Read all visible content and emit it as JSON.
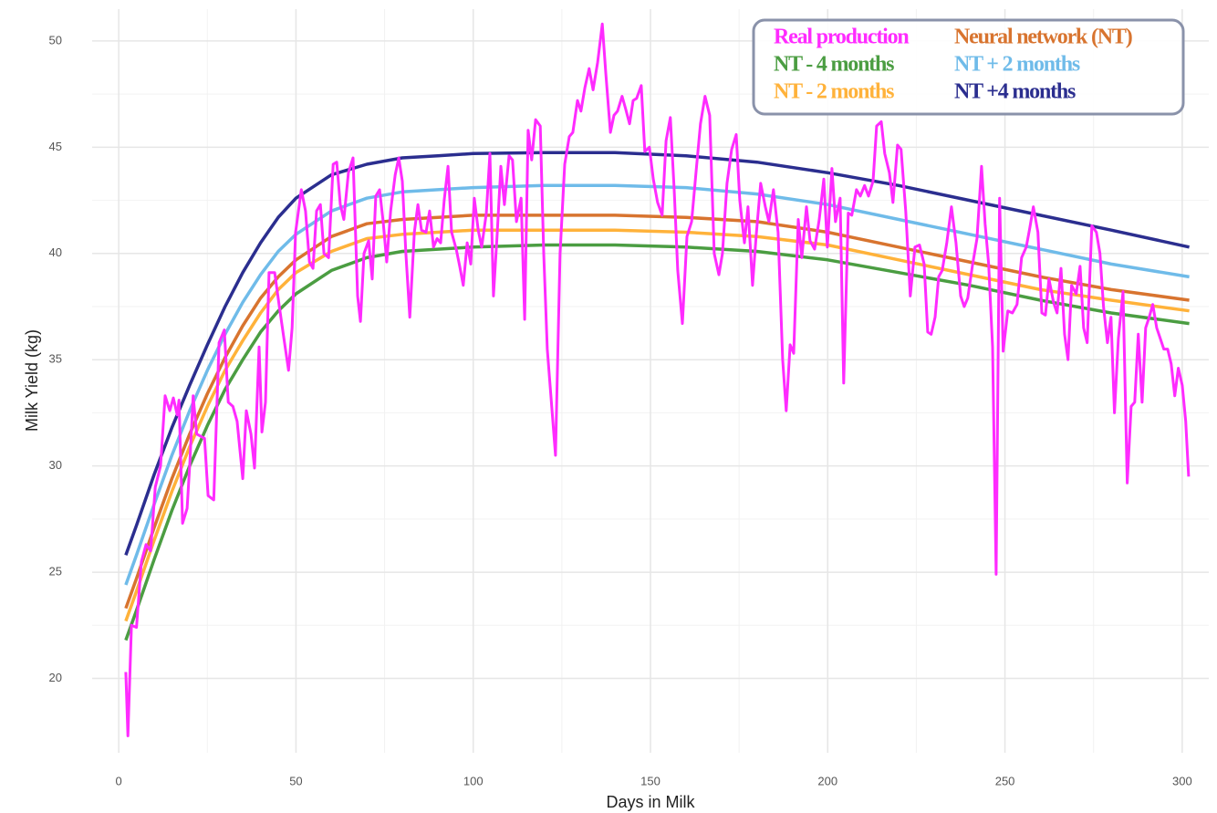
{
  "chart_data": {
    "type": "line",
    "x_label": "Days in Milk",
    "y_label": "Milk Yield (kg)",
    "xlim": [
      -7.5,
      307.5
    ],
    "ylim": [
      16.5,
      51.5
    ],
    "xticks": [
      0,
      50,
      100,
      150,
      200,
      250,
      300
    ],
    "yticks": [
      20,
      25,
      30,
      35,
      40,
      45,
      50
    ],
    "grid": true,
    "legend": "top-right",
    "series": [
      {
        "name": "Real production",
        "color": "#ff2bff",
        "x": [
          2,
          2.6,
          3.6,
          5,
          6.4,
          7.7,
          9,
          10.3,
          11.8,
          13.1,
          14.4,
          15.4,
          16.5,
          17,
          18,
          19.3,
          20,
          21,
          22,
          24.2,
          25.2,
          26.8,
          28.3,
          29.8,
          30.9,
          32.2,
          33.4,
          35,
          36,
          37.3,
          38.3,
          39.6,
          40.4,
          41.4,
          42.4,
          44,
          45.3,
          46.6,
          47.9,
          48.9,
          49.9,
          51.5,
          52.7,
          53.8,
          54.8,
          55.8,
          56.9,
          57.9,
          59.2,
          60.5,
          61.5,
          62.5,
          63.5,
          64.8,
          66.1,
          67.4,
          68.2,
          69.2,
          70.5,
          71.5,
          72.5,
          73.6,
          74.6,
          75.6,
          76.7,
          78,
          79,
          80,
          81,
          82.1,
          83.4,
          84.4,
          85.4,
          86.7,
          87.7,
          88.8,
          89.8,
          90.8,
          91.8,
          92.9,
          93.9,
          95.2,
          96.2,
          97.2,
          98.3,
          99.3,
          100.3,
          101.4,
          102.4,
          103.7,
          104.7,
          105.7,
          106.8,
          107.8,
          108.8,
          110.1,
          111.1,
          112.2,
          113.5,
          114.5,
          115.5,
          116.5,
          117.6,
          118.9,
          119.9,
          120.9,
          123.2,
          124.5,
          125.8,
          127.1,
          128.1,
          129.4,
          130.4,
          131.5,
          132.7,
          133.8,
          135.1,
          136.4,
          137.4,
          138.7,
          139.7,
          140.7,
          142,
          143,
          144.1,
          145.1,
          146.1,
          147.4,
          148.4,
          149.7,
          150.8,
          152,
          153.3,
          154.4,
          155.6,
          156.7,
          157.7,
          159,
          160.3,
          161.6,
          162.9,
          164.1,
          165.4,
          166.7,
          168,
          169.3,
          170.3,
          171.6,
          172.9,
          174.2,
          175.2,
          176.5,
          177.5,
          178.8,
          179.8,
          181.1,
          182.4,
          183.4,
          184.7,
          186,
          187.3,
          188.3,
          189.4,
          190.4,
          191.7,
          192.7,
          194,
          195,
          196.3,
          197.6,
          198.9,
          199.9,
          201.2,
          202.2,
          203.5,
          204.5,
          205.8,
          206.8,
          208.1,
          209.2,
          210.4,
          211.5,
          212.8,
          213.8,
          215.1,
          216.1,
          217.4,
          218.4,
          219.7,
          220.7,
          222,
          223.3,
          224.6,
          225.9,
          227.2,
          228.2,
          229.2,
          230.3,
          231.3,
          232.3,
          233.6,
          234.9,
          236.2,
          237.5,
          238.5,
          239.5,
          240.8,
          242.1,
          243.4,
          244.4,
          245.4,
          246.5,
          247.5,
          248.5,
          249.5,
          250.8,
          252.1,
          253.4,
          254.7,
          256,
          257,
          258,
          259.3,
          260.4,
          261.4,
          262.4,
          263.7,
          264.7,
          265.8,
          266.8,
          267.8,
          268.8,
          270.1,
          271.2,
          272.2,
          273.2,
          274.5,
          275.8,
          276.8,
          277.8,
          278.9,
          279.9,
          280.9,
          282,
          283.3,
          284.5,
          285.6,
          286.6,
          287.6,
          288.7,
          289.7,
          290.7,
          291.7,
          292.8,
          293.8,
          294.8,
          295.9,
          296.9,
          297.9,
          298.9,
          300,
          301,
          301.8
        ],
        "values": [
          20.3,
          17.3,
          22.5,
          22.4,
          25.5,
          26.3,
          26,
          29,
          30,
          33.3,
          32.6,
          33.2,
          32.4,
          33.1,
          27.3,
          28,
          30,
          33.3,
          31.5,
          31.3,
          28.6,
          28.4,
          35.8,
          36.4,
          33,
          32.8,
          32.1,
          29.4,
          32.6,
          31.5,
          29.9,
          35.6,
          31.6,
          33,
          39.1,
          39.1,
          37.5,
          36,
          34.5,
          36.5,
          41,
          43,
          42,
          39.6,
          39.3,
          42,
          42.3,
          40,
          39.8,
          44.2,
          44.3,
          42.3,
          41.6,
          43.8,
          44.5,
          38,
          36.8,
          40,
          40.6,
          38.8,
          42.7,
          43,
          41.5,
          39.6,
          42,
          43.7,
          44.5,
          43.4,
          40,
          37,
          41,
          42.3,
          41.1,
          41,
          42,
          40.3,
          40.7,
          40.5,
          42.5,
          44.1,
          41,
          40.2,
          39.4,
          38.5,
          40.5,
          39.5,
          42.6,
          41.1,
          40.3,
          41.9,
          44.7,
          38,
          41,
          44.1,
          42.3,
          44.6,
          44.4,
          41.5,
          42.6,
          36.9,
          45.8,
          44.4,
          46.3,
          46,
          40,
          35.5,
          30.5,
          40,
          44.2,
          45.5,
          45.7,
          47.2,
          46.7,
          47.8,
          48.7,
          47.7,
          49,
          50.8,
          48.5,
          45.7,
          46.5,
          46.7,
          47.4,
          46.8,
          46.1,
          47.2,
          47.3,
          47.9,
          44.8,
          45,
          43.5,
          42.4,
          41.8,
          45.3,
          46.4,
          43,
          39.2,
          36.7,
          40.8,
          41.5,
          43.9,
          46.1,
          47.4,
          46.5,
          40,
          39,
          40,
          43.3,
          44.9,
          45.6,
          42.5,
          40.5,
          42.2,
          38.5,
          40.8,
          43.3,
          42.2,
          41.5,
          43,
          41,
          35,
          32.6,
          35.7,
          35.3,
          41.6,
          39.8,
          42.2,
          40.6,
          40.2,
          41.6,
          43.5,
          40.3,
          44,
          41.5,
          42.6,
          33.9,
          41.9,
          41.8,
          43,
          42.7,
          43.2,
          42.7,
          43.4,
          46,
          46.2,
          44.7,
          43.8,
          42.4,
          45.1,
          44.9,
          42,
          38,
          40.3,
          40.4,
          39.5,
          36.3,
          36.2,
          37,
          38.9,
          39.2,
          40.5,
          42.2,
          40.5,
          38,
          37.5,
          37.9,
          39.4,
          40.7,
          44.1,
          41.4,
          39.5,
          35.6,
          24.9,
          42.6,
          35.4,
          37.3,
          37.2,
          37.6,
          39.8,
          40.3,
          41.2,
          42.2,
          41,
          37.2,
          37.1,
          38.8,
          37.7,
          37.2,
          39.3,
          36.2,
          35,
          38.5,
          38.1,
          39.4,
          36.5,
          35.8,
          41.3,
          41,
          40,
          37.5,
          35.8,
          37,
          32.5,
          36,
          38.2,
          29.2,
          32.8,
          33,
          36.2,
          33,
          36.5,
          37,
          37.6,
          36.5,
          36,
          35.5,
          35.5,
          34.8,
          33.3,
          34.6,
          33.8,
          32.1,
          29.5
        ]
      },
      {
        "name": "NT - 4 months",
        "color": "#4b9d42",
        "x": [
          2,
          5,
          10,
          15,
          20,
          25,
          30,
          35,
          40,
          45,
          50,
          60,
          70,
          80,
          90,
          100,
          120,
          140,
          160,
          180,
          200,
          220,
          240,
          260,
          280,
          302
        ],
        "values": [
          21.8,
          23.2,
          25.6,
          27.9,
          30.0,
          31.9,
          33.6,
          35.0,
          36.3,
          37.3,
          38.1,
          39.2,
          39.8,
          40.1,
          40.2,
          40.3,
          40.4,
          40.4,
          40.3,
          40.1,
          39.7,
          39.1,
          38.5,
          37.8,
          37.2,
          36.7
        ]
      },
      {
        "name": "NT - 2 months",
        "color": "#ffb23a",
        "x": [
          2,
          5,
          10,
          15,
          20,
          25,
          30,
          35,
          40,
          45,
          50,
          60,
          70,
          80,
          90,
          100,
          120,
          140,
          160,
          180,
          200,
          220,
          240,
          260,
          280,
          302
        ],
        "values": [
          22.7,
          24.1,
          26.5,
          28.8,
          30.9,
          32.8,
          34.5,
          35.9,
          37.2,
          38.3,
          39.1,
          40.1,
          40.7,
          40.9,
          41.0,
          41.1,
          41.1,
          41.1,
          41.0,
          40.8,
          40.4,
          39.7,
          39.0,
          38.3,
          37.8,
          37.3
        ]
      },
      {
        "name": "Neural network (NT)",
        "color": "#d8742f",
        "x": [
          2,
          5,
          10,
          15,
          20,
          25,
          30,
          35,
          40,
          45,
          50,
          60,
          70,
          80,
          90,
          100,
          120,
          140,
          160,
          180,
          200,
          220,
          240,
          260,
          280,
          302
        ],
        "values": [
          23.3,
          24.7,
          27.1,
          29.4,
          31.5,
          33.4,
          35.1,
          36.6,
          37.9,
          38.9,
          39.7,
          40.8,
          41.4,
          41.6,
          41.7,
          41.8,
          41.8,
          41.8,
          41.7,
          41.5,
          41.0,
          40.3,
          39.6,
          38.9,
          38.3,
          37.8
        ]
      },
      {
        "name": "NT + 2 months",
        "color": "#6fbbe9",
        "x": [
          2,
          5,
          10,
          15,
          20,
          25,
          30,
          35,
          40,
          45,
          50,
          60,
          70,
          80,
          90,
          100,
          120,
          140,
          160,
          180,
          200,
          220,
          240,
          260,
          280,
          302
        ],
        "values": [
          24.4,
          25.8,
          28.2,
          30.5,
          32.6,
          34.5,
          36.2,
          37.7,
          39.0,
          40.1,
          40.9,
          42.0,
          42.6,
          42.9,
          43.0,
          43.1,
          43.2,
          43.2,
          43.1,
          42.8,
          42.3,
          41.6,
          40.9,
          40.2,
          39.5,
          38.9
        ]
      },
      {
        "name": "NT +4 months",
        "color": "#2b2e8f",
        "x": [
          2,
          5,
          10,
          15,
          20,
          25,
          30,
          35,
          40,
          45,
          50,
          60,
          70,
          80,
          90,
          100,
          120,
          140,
          160,
          180,
          200,
          220,
          240,
          260,
          280,
          302
        ],
        "values": [
          25.8,
          27.2,
          29.6,
          31.8,
          33.8,
          35.7,
          37.5,
          39.1,
          40.5,
          41.7,
          42.6,
          43.7,
          44.2,
          44.5,
          44.6,
          44.7,
          44.75,
          44.75,
          44.6,
          44.3,
          43.8,
          43.2,
          42.5,
          41.8,
          41.1,
          40.3
        ]
      }
    ]
  }
}
